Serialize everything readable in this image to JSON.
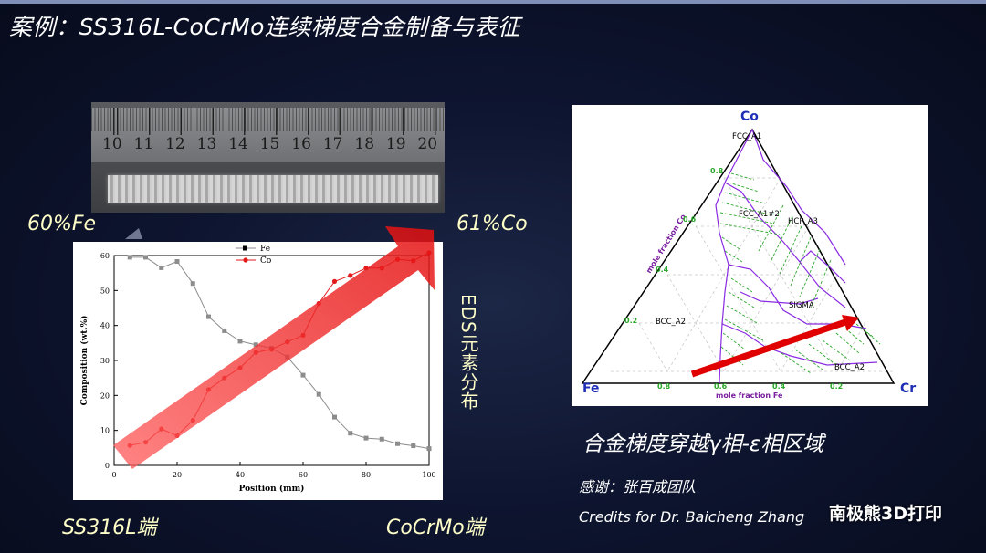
{
  "title": "案例：SS316L-CoCrMo连续梯度合金制备与表征",
  "photo": {
    "ruler_numbers": [
      "10",
      "11",
      "12",
      "13",
      "14",
      "15",
      "16",
      "17",
      "18",
      "19",
      "20"
    ]
  },
  "labels": {
    "left_top": "60%Fe",
    "right_top": "61%Co",
    "left_bottom": "SS316L端",
    "right_bottom": "CoCrMo端",
    "eds": "EDS元素分布"
  },
  "chart_data": {
    "type": "line",
    "title": "",
    "xlabel": "Position (mm)",
    "ylabel": "Composition (wt.%)",
    "xlim": [
      0,
      100
    ],
    "ylim": [
      0,
      60
    ],
    "xticks": [
      0,
      20,
      40,
      60,
      80,
      100
    ],
    "yticks": [
      0,
      10,
      20,
      30,
      40,
      50,
      60
    ],
    "legend_position": "top-center",
    "series": [
      {
        "name": "Fe",
        "color": "#8c8c8c",
        "marker": "square",
        "x": [
          5,
          10,
          15,
          20,
          25,
          30,
          35,
          40,
          45,
          50,
          55,
          60,
          65,
          70,
          75,
          80,
          85,
          90,
          95,
          100
        ],
        "values": [
          59.5,
          59.5,
          56.5,
          58.3,
          52,
          42.5,
          38.5,
          35.5,
          34.5,
          33.5,
          31,
          25.8,
          20.3,
          13.8,
          9.2,
          7.8,
          7.5,
          6.2,
          5.6,
          4.8
        ]
      },
      {
        "name": "Co",
        "color": "#e31a1c",
        "marker": "circle",
        "x": [
          5,
          10,
          15,
          20,
          25,
          30,
          35,
          40,
          45,
          50,
          55,
          60,
          65,
          70,
          75,
          80,
          85,
          90,
          95,
          100
        ],
        "values": [
          5.7,
          6.6,
          10.4,
          8.5,
          12.9,
          21.7,
          25.0,
          27.9,
          32.3,
          33.2,
          35.3,
          37.2,
          46.3,
          52.6,
          54.3,
          56.4,
          56.4,
          58.9,
          58.5,
          60.8
        ]
      }
    ]
  },
  "ternary": {
    "vertices": {
      "top": "Co",
      "left": "Fe",
      "right": "Cr"
    },
    "phases": [
      "FCC_A1",
      "FCC_A1#2",
      "HCP_A3",
      "SIGMA",
      "BCC_A2",
      "BCC_A2"
    ],
    "left_axis_label": "mole fraction Co",
    "bottom_axis_label": "mole fraction Fe",
    "left_ticks": [
      "0.8",
      "0.6",
      "0.4",
      "0.2"
    ],
    "bottom_ticks": [
      "0.8",
      "0.6",
      "0.4",
      "0.2"
    ]
  },
  "caption": "合金梯度穿越γ相-ε相区域",
  "thanks": "感谢：张百成团队",
  "credits": "Credits for Dr. Baicheng Zhang",
  "brand": "南极熊3D打印"
}
